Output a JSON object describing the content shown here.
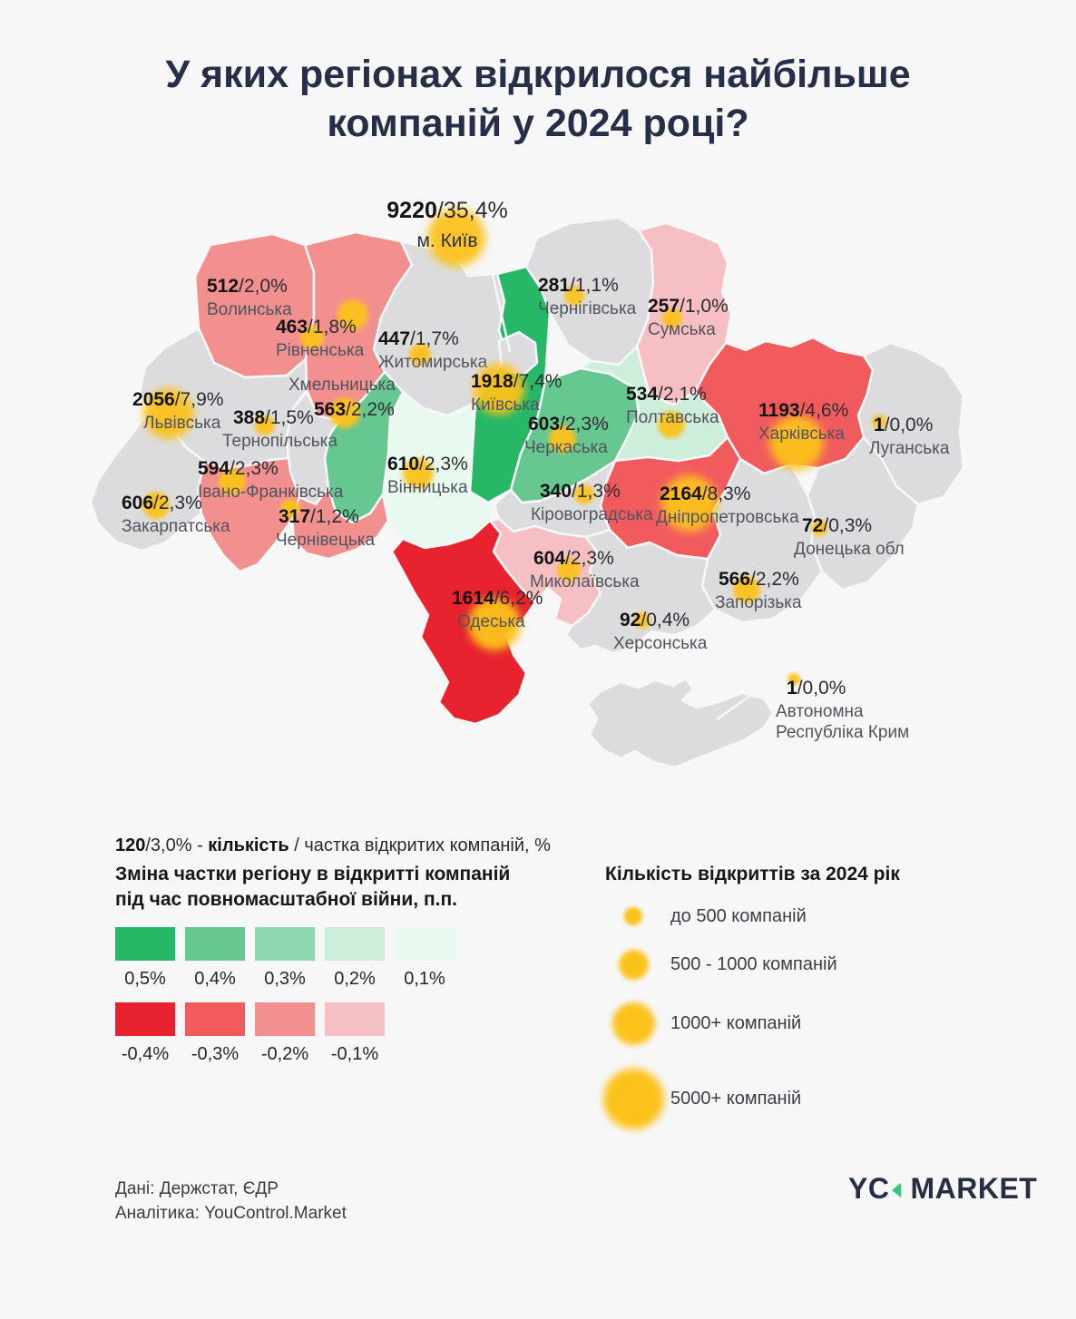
{
  "title": "У яких регіонах відкрилося найбільше компаній у 2024 році?",
  "palette": {
    "pos5": "#27b867",
    "pos4": "#66c791",
    "pos3": "#8ed6ad",
    "pos2": "#cdeeda",
    "pos1": "#e8f9ef",
    "neg4": "#e8232f",
    "neg3": "#f25b5e",
    "neg2": "#f29090",
    "neg1": "#f5bfc3",
    "none": "#dcdcde",
    "city": "#dcdcde"
  },
  "bubble_color": "#fcc21c",
  "map": {
    "regions": [
      {
        "key": "kyiv_city",
        "name": "м. Київ",
        "count": "9220",
        "share": "35,4%",
        "category": "city"
      },
      {
        "key": "volyn",
        "name": "Волинська",
        "count": "512",
        "share": "2,0%",
        "category": "neg2"
      },
      {
        "key": "rivne",
        "name": "Рівненська",
        "count": "463",
        "share": "1,8%",
        "category": "neg2"
      },
      {
        "key": "zhytomyr",
        "name": "Житомирська",
        "count": "447",
        "share": "1,7%",
        "category": "none"
      },
      {
        "key": "chernihiv",
        "name": "Чернігівська",
        "count": "281",
        "share": "1,1%",
        "category": "none"
      },
      {
        "key": "sumy",
        "name": "Сумська",
        "count": "257",
        "share": "1,0%",
        "category": "neg1"
      },
      {
        "key": "kyivobl",
        "name": "Київська",
        "count": "1918",
        "share": "7,4%",
        "category": "pos5"
      },
      {
        "key": "khmelnytskyi",
        "name": "Хмельницька",
        "count": "563",
        "share": "2,2%",
        "category": "pos4"
      },
      {
        "key": "lviv",
        "name": "Львівська",
        "count": "2056",
        "share": "7,9%",
        "category": "none"
      },
      {
        "key": "ternopil",
        "name": "Тернопільська",
        "count": "388",
        "share": "1,5%",
        "category": "none"
      },
      {
        "key": "poltava",
        "name": "Полтавська",
        "count": "534",
        "share": "2,1%",
        "category": "pos2"
      },
      {
        "key": "kharkiv",
        "name": "Харківська",
        "count": "1193",
        "share": "4,6%",
        "category": "neg3"
      },
      {
        "key": "luhansk",
        "name": "Луганська",
        "count": "1",
        "share": "0,0%",
        "category": "none"
      },
      {
        "key": "cherkasy",
        "name": "Черкаська",
        "count": "603",
        "share": "2,3%",
        "category": "pos4"
      },
      {
        "key": "vinnytsia",
        "name": "Вінницька",
        "count": "610",
        "share": "2,3%",
        "category": "pos1"
      },
      {
        "key": "ivano",
        "name": "Івано-Франківська",
        "count": "594",
        "share": "2,3%",
        "category": "neg2"
      },
      {
        "key": "zakarpattia",
        "name": "Закарпатська",
        "count": "606",
        "share": "2,3%",
        "category": "none"
      },
      {
        "key": "chernivtsi",
        "name": "Чернівецька",
        "count": "317",
        "share": "1,2%",
        "category": "neg2"
      },
      {
        "key": "kirovohrad",
        "name": "Кіровоградська",
        "count": "340",
        "share": "1,3%",
        "category": "none"
      },
      {
        "key": "dnipro",
        "name": "Дніпропетровська",
        "count": "2164",
        "share": "8,3%",
        "category": "neg3"
      },
      {
        "key": "donetsk",
        "name": "Донецька обл",
        "count": "72",
        "share": "0,3%",
        "category": "none"
      },
      {
        "key": "mykolaiv",
        "name": "Миколаївська",
        "count": "604",
        "share": "2,3%",
        "category": "neg1"
      },
      {
        "key": "zaporizhzhia",
        "name": "Запорізька",
        "count": "566",
        "share": "2,2%",
        "category": "none"
      },
      {
        "key": "kherson",
        "name": "Херсонська",
        "count": "92",
        "share": "0,4%",
        "category": "none"
      },
      {
        "key": "odesa",
        "name": "Одеська",
        "count": "1614",
        "share": "6,2%",
        "category": "neg4"
      },
      {
        "key": "crimea",
        "name": "Автономна",
        "name2": "Республіка Крим",
        "count": "1",
        "share": "0,0%",
        "category": "none"
      }
    ]
  },
  "legend_note": {
    "count": "120",
    "mid": "/3,0% - ",
    "bold": "кількість",
    "rest": " / частка відкритих компаній, %"
  },
  "legend_change": {
    "title_line1": "Зміна частки регіону в відкритті компаній",
    "title_line2": "під час повномасштабної війни, п.п.",
    "positive": [
      {
        "label": "0,5%",
        "category": "pos5"
      },
      {
        "label": "0,4%",
        "category": "pos4"
      },
      {
        "label": "0,3%",
        "category": "pos3"
      },
      {
        "label": "0,2%",
        "category": "pos2"
      },
      {
        "label": "0,1%",
        "category": "pos1"
      }
    ],
    "negative": [
      {
        "label": "-0,4%",
        "category": "neg4"
      },
      {
        "label": "-0,3%",
        "category": "neg3"
      },
      {
        "label": "-0,2%",
        "category": "neg2"
      },
      {
        "label": "-0,1%",
        "category": "neg1"
      }
    ]
  },
  "legend_size": {
    "title": "Кількість відкриттів за 2024 рік",
    "items": [
      {
        "label": "до 500 компаній"
      },
      {
        "label": "500 - 1000 компаній"
      },
      {
        "label": "1000+ компаній"
      },
      {
        "label": "5000+ компаній"
      }
    ]
  },
  "footer": {
    "source_line1": "Дані: Держстат, ЄДР",
    "source_line2": "Аналітика: YouControl.Market",
    "logo_part1": "YC",
    "logo_part2": "MARKET"
  },
  "chart_data": {
    "type": "heatmap",
    "title": "У яких регіонах відкрилося найбільше компаній у 2024 році?",
    "value_format": "кількість / частка відкритих компаній, %",
    "categories": [
      "м. Київ",
      "Волинська",
      "Рівненська",
      "Житомирська",
      "Чернігівська",
      "Сумська",
      "Київська",
      "Хмельницька",
      "Львівська",
      "Тернопільська",
      "Полтавська",
      "Харківська",
      "Луганська",
      "Черкаська",
      "Вінницька",
      "Івано-Франківська",
      "Закарпатська",
      "Чернівецька",
      "Кіровоградська",
      "Дніпропетровська",
      "Донецька обл",
      "Миколаївська",
      "Запорізька",
      "Херсонська",
      "Одеська",
      "Автономна Республіка Крим"
    ],
    "series": [
      {
        "name": "Кількість відкриттів за 2024 рік",
        "values": [
          9220,
          512,
          463,
          447,
          281,
          257,
          1918,
          563,
          2056,
          388,
          534,
          1193,
          1,
          603,
          610,
          594,
          606,
          317,
          340,
          2164,
          72,
          604,
          566,
          92,
          1614,
          1
        ]
      },
      {
        "name": "Частка відкритих компаній, %",
        "values": [
          35.4,
          2.0,
          1.8,
          1.7,
          1.1,
          1.0,
          7.4,
          2.2,
          7.9,
          1.5,
          2.1,
          4.6,
          0.0,
          2.3,
          2.3,
          2.3,
          2.3,
          1.2,
          1.3,
          8.3,
          0.3,
          2.3,
          2.2,
          0.4,
          6.2,
          0.0
        ]
      },
      {
        "name": "Зміна частки регіону в відкритті компаній під час повномасштабної війни, п.п. (категорія)",
        "values": [
          null,
          -0.2,
          -0.2,
          0,
          0,
          -0.1,
          0.5,
          0.4,
          0,
          0,
          0.2,
          -0.3,
          0,
          0.4,
          0.1,
          -0.2,
          0,
          -0.2,
          0,
          -0.3,
          0,
          -0.1,
          0,
          0,
          -0.4,
          0
        ]
      }
    ]
  }
}
